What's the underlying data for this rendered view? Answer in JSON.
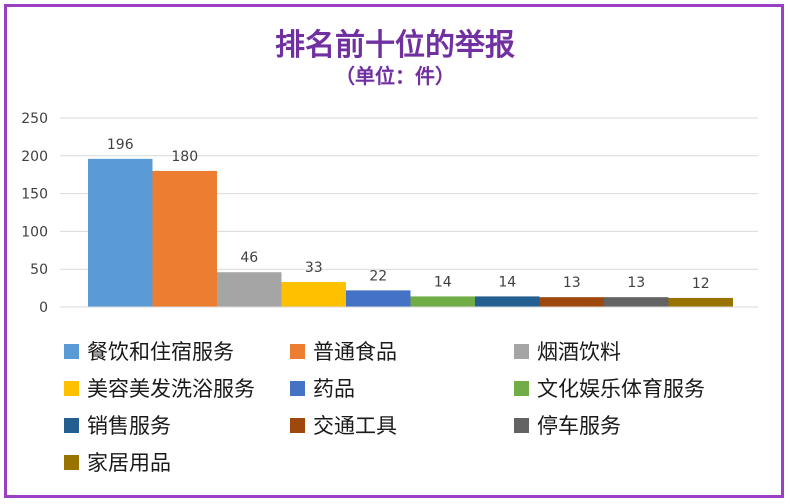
{
  "chart_data": {
    "type": "bar",
    "title": "排名前十位的举报",
    "subtitle": "（单位：件）",
    "xlabel": "",
    "ylabel": "",
    "ylim": [
      0,
      250
    ],
    "yticks": [
      0,
      50,
      100,
      150,
      200,
      250
    ],
    "grid": true,
    "legend_position": "bottom",
    "series": [
      {
        "name": "餐饮和住宿服务",
        "value": 196,
        "color": "#5b9bd5"
      },
      {
        "name": "普通食品",
        "value": 180,
        "color": "#ed7d31"
      },
      {
        "name": "烟酒饮料",
        "value": 46,
        "color": "#a5a5a5"
      },
      {
        "name": "美容美发洗浴服务",
        "value": 33,
        "color": "#ffc000"
      },
      {
        "name": "药品",
        "value": 22,
        "color": "#4472c4"
      },
      {
        "name": "文化娱乐体育服务",
        "value": 14,
        "color": "#70ad47"
      },
      {
        "name": "销售服务",
        "value": 14,
        "color": "#255e91"
      },
      {
        "name": "交通工具",
        "value": 13,
        "color": "#9e480e"
      },
      {
        "name": "停车服务",
        "value": 13,
        "color": "#636363"
      },
      {
        "name": "家居用品",
        "value": 12,
        "color": "#997300"
      }
    ]
  },
  "colors": {
    "border": "#9b3fc4",
    "title": "#7030a0",
    "grid": "#d9d9d9",
    "axis_text": "#404040"
  }
}
